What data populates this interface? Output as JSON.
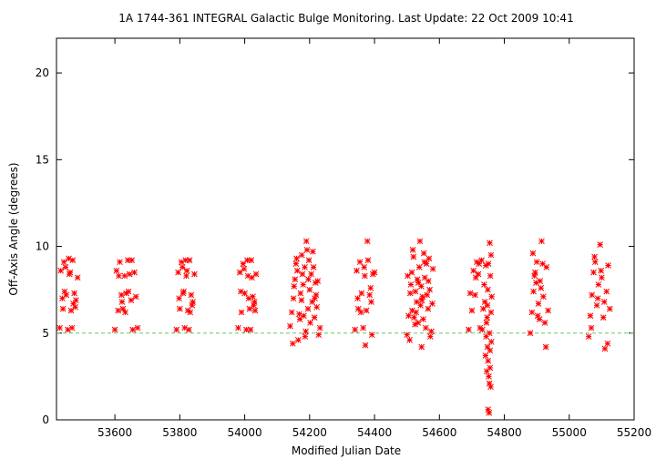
{
  "chart_data": {
    "type": "scatter",
    "title": "1A 1744-361   INTEGRAL Galactic Bulge Monitoring.  Last Update: 22 Oct 2009 10:41",
    "xlabel": "Modified Julian Date",
    "ylabel": "Off-Axis Angle (degrees)",
    "xlim": [
      53420,
      55200
    ],
    "ylim": [
      0,
      22
    ],
    "x_ticks": [
      53600,
      53800,
      54000,
      54200,
      54400,
      54600,
      54800,
      55000,
      55200
    ],
    "y_ticks": [
      0,
      5,
      10,
      15,
      20
    ],
    "grid": false,
    "legend": "none",
    "reference_line": {
      "y": 5,
      "style": "dashed",
      "color": "#66cc66"
    },
    "series": [
      {
        "marker": "asterisk",
        "color": "#ff0000",
        "points": [
          [
            53430,
            5.3
          ],
          [
            53440,
            6.4
          ],
          [
            53450,
            7.2
          ],
          [
            53460,
            8.4
          ],
          [
            53470,
            9.2
          ],
          [
            53480,
            6.9
          ],
          [
            53433,
            8.6
          ],
          [
            53443,
            9.1
          ],
          [
            53455,
            5.2
          ],
          [
            53465,
            6.3
          ],
          [
            53475,
            7.3
          ],
          [
            53485,
            8.2
          ],
          [
            53438,
            7.0
          ],
          [
            53448,
            8.8
          ],
          [
            53458,
            9.3
          ],
          [
            53468,
            5.3
          ],
          [
            53478,
            6.5
          ],
          [
            53445,
            7.4
          ],
          [
            53462,
            8.5
          ],
          [
            53472,
            6.7
          ],
          [
            53600,
            5.2
          ],
          [
            53610,
            6.3
          ],
          [
            53620,
            7.2
          ],
          [
            53630,
            8.3
          ],
          [
            53640,
            9.2
          ],
          [
            53650,
            6.9
          ],
          [
            53660,
            8.5
          ],
          [
            53670,
            5.3
          ],
          [
            53605,
            8.6
          ],
          [
            53615,
            9.1
          ],
          [
            53625,
            6.4
          ],
          [
            53635,
            7.3
          ],
          [
            53645,
            8.4
          ],
          [
            53655,
            5.2
          ],
          [
            53665,
            7.1
          ],
          [
            53612,
            8.3
          ],
          [
            53632,
            6.2
          ],
          [
            53652,
            9.2
          ],
          [
            53622,
            6.8
          ],
          [
            53642,
            7.4
          ],
          [
            53790,
            5.2
          ],
          [
            53800,
            6.4
          ],
          [
            53810,
            7.3
          ],
          [
            53820,
            8.3
          ],
          [
            53830,
            9.2
          ],
          [
            53840,
            6.8
          ],
          [
            53795,
            8.5
          ],
          [
            53805,
            9.1
          ],
          [
            53815,
            5.3
          ],
          [
            53825,
            6.3
          ],
          [
            53835,
            7.2
          ],
          [
            53845,
            8.4
          ],
          [
            53798,
            7.0
          ],
          [
            53808,
            8.8
          ],
          [
            53818,
            9.2
          ],
          [
            53828,
            5.2
          ],
          [
            53838,
            6.6
          ],
          [
            53812,
            7.4
          ],
          [
            53822,
            8.6
          ],
          [
            53832,
            6.2
          ],
          [
            53980,
            5.3
          ],
          [
            53990,
            6.2
          ],
          [
            54000,
            7.3
          ],
          [
            54010,
            8.3
          ],
          [
            54020,
            9.2
          ],
          [
            54030,
            6.8
          ],
          [
            53985,
            8.5
          ],
          [
            53995,
            9.0
          ],
          [
            54005,
            5.2
          ],
          [
            54015,
            6.4
          ],
          [
            54025,
            7.1
          ],
          [
            54035,
            8.4
          ],
          [
            53988,
            7.4
          ],
          [
            53998,
            8.7
          ],
          [
            54008,
            9.2
          ],
          [
            54018,
            5.2
          ],
          [
            54028,
            6.6
          ],
          [
            54012,
            7.0
          ],
          [
            54022,
            8.2
          ],
          [
            54032,
            6.3
          ],
          [
            54140,
            5.4
          ],
          [
            54145,
            6.2
          ],
          [
            54150,
            7.0
          ],
          [
            54155,
            8.1
          ],
          [
            54160,
            9.3
          ],
          [
            54165,
            4.6
          ],
          [
            54170,
            5.8
          ],
          [
            54175,
            6.9
          ],
          [
            54180,
            7.8
          ],
          [
            54185,
            8.8
          ],
          [
            54190,
            10.3
          ],
          [
            54195,
            6.4
          ],
          [
            54200,
            7.5
          ],
          [
            54205,
            8.4
          ],
          [
            54210,
            9.7
          ],
          [
            54215,
            5.9
          ],
          [
            54220,
            7.2
          ],
          [
            54225,
            8.0
          ],
          [
            54148,
            4.4
          ],
          [
            54158,
            9.0
          ],
          [
            54168,
            6.1
          ],
          [
            54178,
            8.4
          ],
          [
            54188,
            5.1
          ],
          [
            54198,
            9.2
          ],
          [
            54208,
            6.8
          ],
          [
            54218,
            7.9
          ],
          [
            54228,
            4.9
          ],
          [
            54232,
            5.3
          ],
          [
            54162,
            8.6
          ],
          [
            54172,
            7.3
          ],
          [
            54182,
            6.0
          ],
          [
            54192,
            9.8
          ],
          [
            54202,
            5.6
          ],
          [
            54212,
            8.8
          ],
          [
            54222,
            6.5
          ],
          [
            54152,
            7.7
          ],
          [
            54176,
            9.5
          ],
          [
            54196,
            8.1
          ],
          [
            54216,
            7.0
          ],
          [
            54186,
            4.8
          ],
          [
            54340,
            5.2
          ],
          [
            54350,
            6.4
          ],
          [
            54360,
            7.3
          ],
          [
            54370,
            8.3
          ],
          [
            54380,
            9.2
          ],
          [
            54390,
            6.8
          ],
          [
            54400,
            8.5
          ],
          [
            54345,
            8.6
          ],
          [
            54355,
            9.1
          ],
          [
            54365,
            5.3
          ],
          [
            54375,
            6.3
          ],
          [
            54385,
            7.2
          ],
          [
            54395,
            8.4
          ],
          [
            54378,
            10.3
          ],
          [
            54372,
            4.3
          ],
          [
            54392,
            4.9
          ],
          [
            54348,
            7.0
          ],
          [
            54368,
            8.8
          ],
          [
            54388,
            7.6
          ],
          [
            54358,
            6.2
          ],
          [
            54500,
            4.9
          ],
          [
            54505,
            6.0
          ],
          [
            54510,
            7.3
          ],
          [
            54515,
            8.5
          ],
          [
            54520,
            9.4
          ],
          [
            54525,
            5.5
          ],
          [
            54530,
            6.8
          ],
          [
            54535,
            7.9
          ],
          [
            54540,
            10.3
          ],
          [
            54545,
            4.2
          ],
          [
            54550,
            5.8
          ],
          [
            54555,
            8.2
          ],
          [
            54560,
            9.0
          ],
          [
            54565,
            6.4
          ],
          [
            54570,
            7.5
          ],
          [
            54575,
            5.1
          ],
          [
            54580,
            8.7
          ],
          [
            54508,
            4.6
          ],
          [
            54518,
            9.8
          ],
          [
            54528,
            6.2
          ],
          [
            54538,
            8.8
          ],
          [
            54548,
            7.1
          ],
          [
            54558,
            5.3
          ],
          [
            54568,
            9.3
          ],
          [
            54578,
            6.7
          ],
          [
            54512,
            7.8
          ],
          [
            54522,
            5.9
          ],
          [
            54532,
            8.1
          ],
          [
            54542,
            6.6
          ],
          [
            54552,
            9.6
          ],
          [
            54562,
            7.2
          ],
          [
            54572,
            4.8
          ],
          [
            54502,
            8.3
          ],
          [
            54526,
            7.4
          ],
          [
            54546,
            6.9
          ],
          [
            54566,
            8.0
          ],
          [
            54534,
            5.6
          ],
          [
            54554,
            9.1
          ],
          [
            54544,
            7.7
          ],
          [
            54516,
            6.3
          ],
          [
            54690,
            5.2
          ],
          [
            54700,
            6.3
          ],
          [
            54710,
            7.2
          ],
          [
            54720,
            8.4
          ],
          [
            54730,
            9.2
          ],
          [
            54740,
            6.8
          ],
          [
            54745,
            5.6
          ],
          [
            54748,
            4.2
          ],
          [
            54750,
            3.4
          ],
          [
            54752,
            2.5
          ],
          [
            54754,
            2.1
          ],
          [
            54756,
            3.0
          ],
          [
            54758,
            1.9
          ],
          [
            54746,
            2.8
          ],
          [
            54750,
            0.6
          ],
          [
            54753,
            0.4
          ],
          [
            54744,
            4.8
          ],
          [
            54747,
            5.9
          ],
          [
            54749,
            7.5
          ],
          [
            54751,
            9.0
          ],
          [
            54755,
            10.2
          ],
          [
            54757,
            8.3
          ],
          [
            54759,
            6.2
          ],
          [
            54761,
            7.1
          ],
          [
            54760,
            4.5
          ],
          [
            54742,
            3.7
          ],
          [
            54705,
            8.6
          ],
          [
            54715,
            9.1
          ],
          [
            54725,
            5.3
          ],
          [
            54735,
            6.4
          ],
          [
            54695,
            7.3
          ],
          [
            54712,
            8.2
          ],
          [
            54722,
            9.0
          ],
          [
            54732,
            5.2
          ],
          [
            54738,
            7.8
          ],
          [
            54743,
            8.9
          ],
          [
            54748,
            6.6
          ],
          [
            54754,
            5.0
          ],
          [
            54756,
            4.0
          ],
          [
            54759,
            9.5
          ],
          [
            54880,
            5.0
          ],
          [
            54885,
            6.2
          ],
          [
            54890,
            7.4
          ],
          [
            54895,
            8.5
          ],
          [
            54900,
            9.1
          ],
          [
            54905,
            6.7
          ],
          [
            54910,
            8.0
          ],
          [
            54915,
            10.3
          ],
          [
            54920,
            7.1
          ],
          [
            54925,
            5.6
          ],
          [
            54930,
            8.8
          ],
          [
            54935,
            6.3
          ],
          [
            54888,
            9.6
          ],
          [
            54898,
            7.9
          ],
          [
            54908,
            5.8
          ],
          [
            54918,
            9.0
          ],
          [
            54928,
            4.2
          ],
          [
            54893,
            8.3
          ],
          [
            54903,
            6.0
          ],
          [
            54913,
            7.6
          ],
          [
            55060,
            4.8
          ],
          [
            55065,
            6.0
          ],
          [
            55070,
            7.2
          ],
          [
            55075,
            8.5
          ],
          [
            55080,
            9.1
          ],
          [
            55085,
            6.6
          ],
          [
            55090,
            7.8
          ],
          [
            55095,
            10.1
          ],
          [
            55100,
            8.2
          ],
          [
            55105,
            5.9
          ],
          [
            55110,
            4.1
          ],
          [
            55115,
            7.4
          ],
          [
            55120,
            8.9
          ],
          [
            55125,
            6.4
          ],
          [
            55068,
            5.3
          ],
          [
            55078,
            9.4
          ],
          [
            55088,
            7.0
          ],
          [
            55098,
            8.6
          ],
          [
            55108,
            6.8
          ],
          [
            55118,
            4.4
          ]
        ]
      }
    ]
  }
}
